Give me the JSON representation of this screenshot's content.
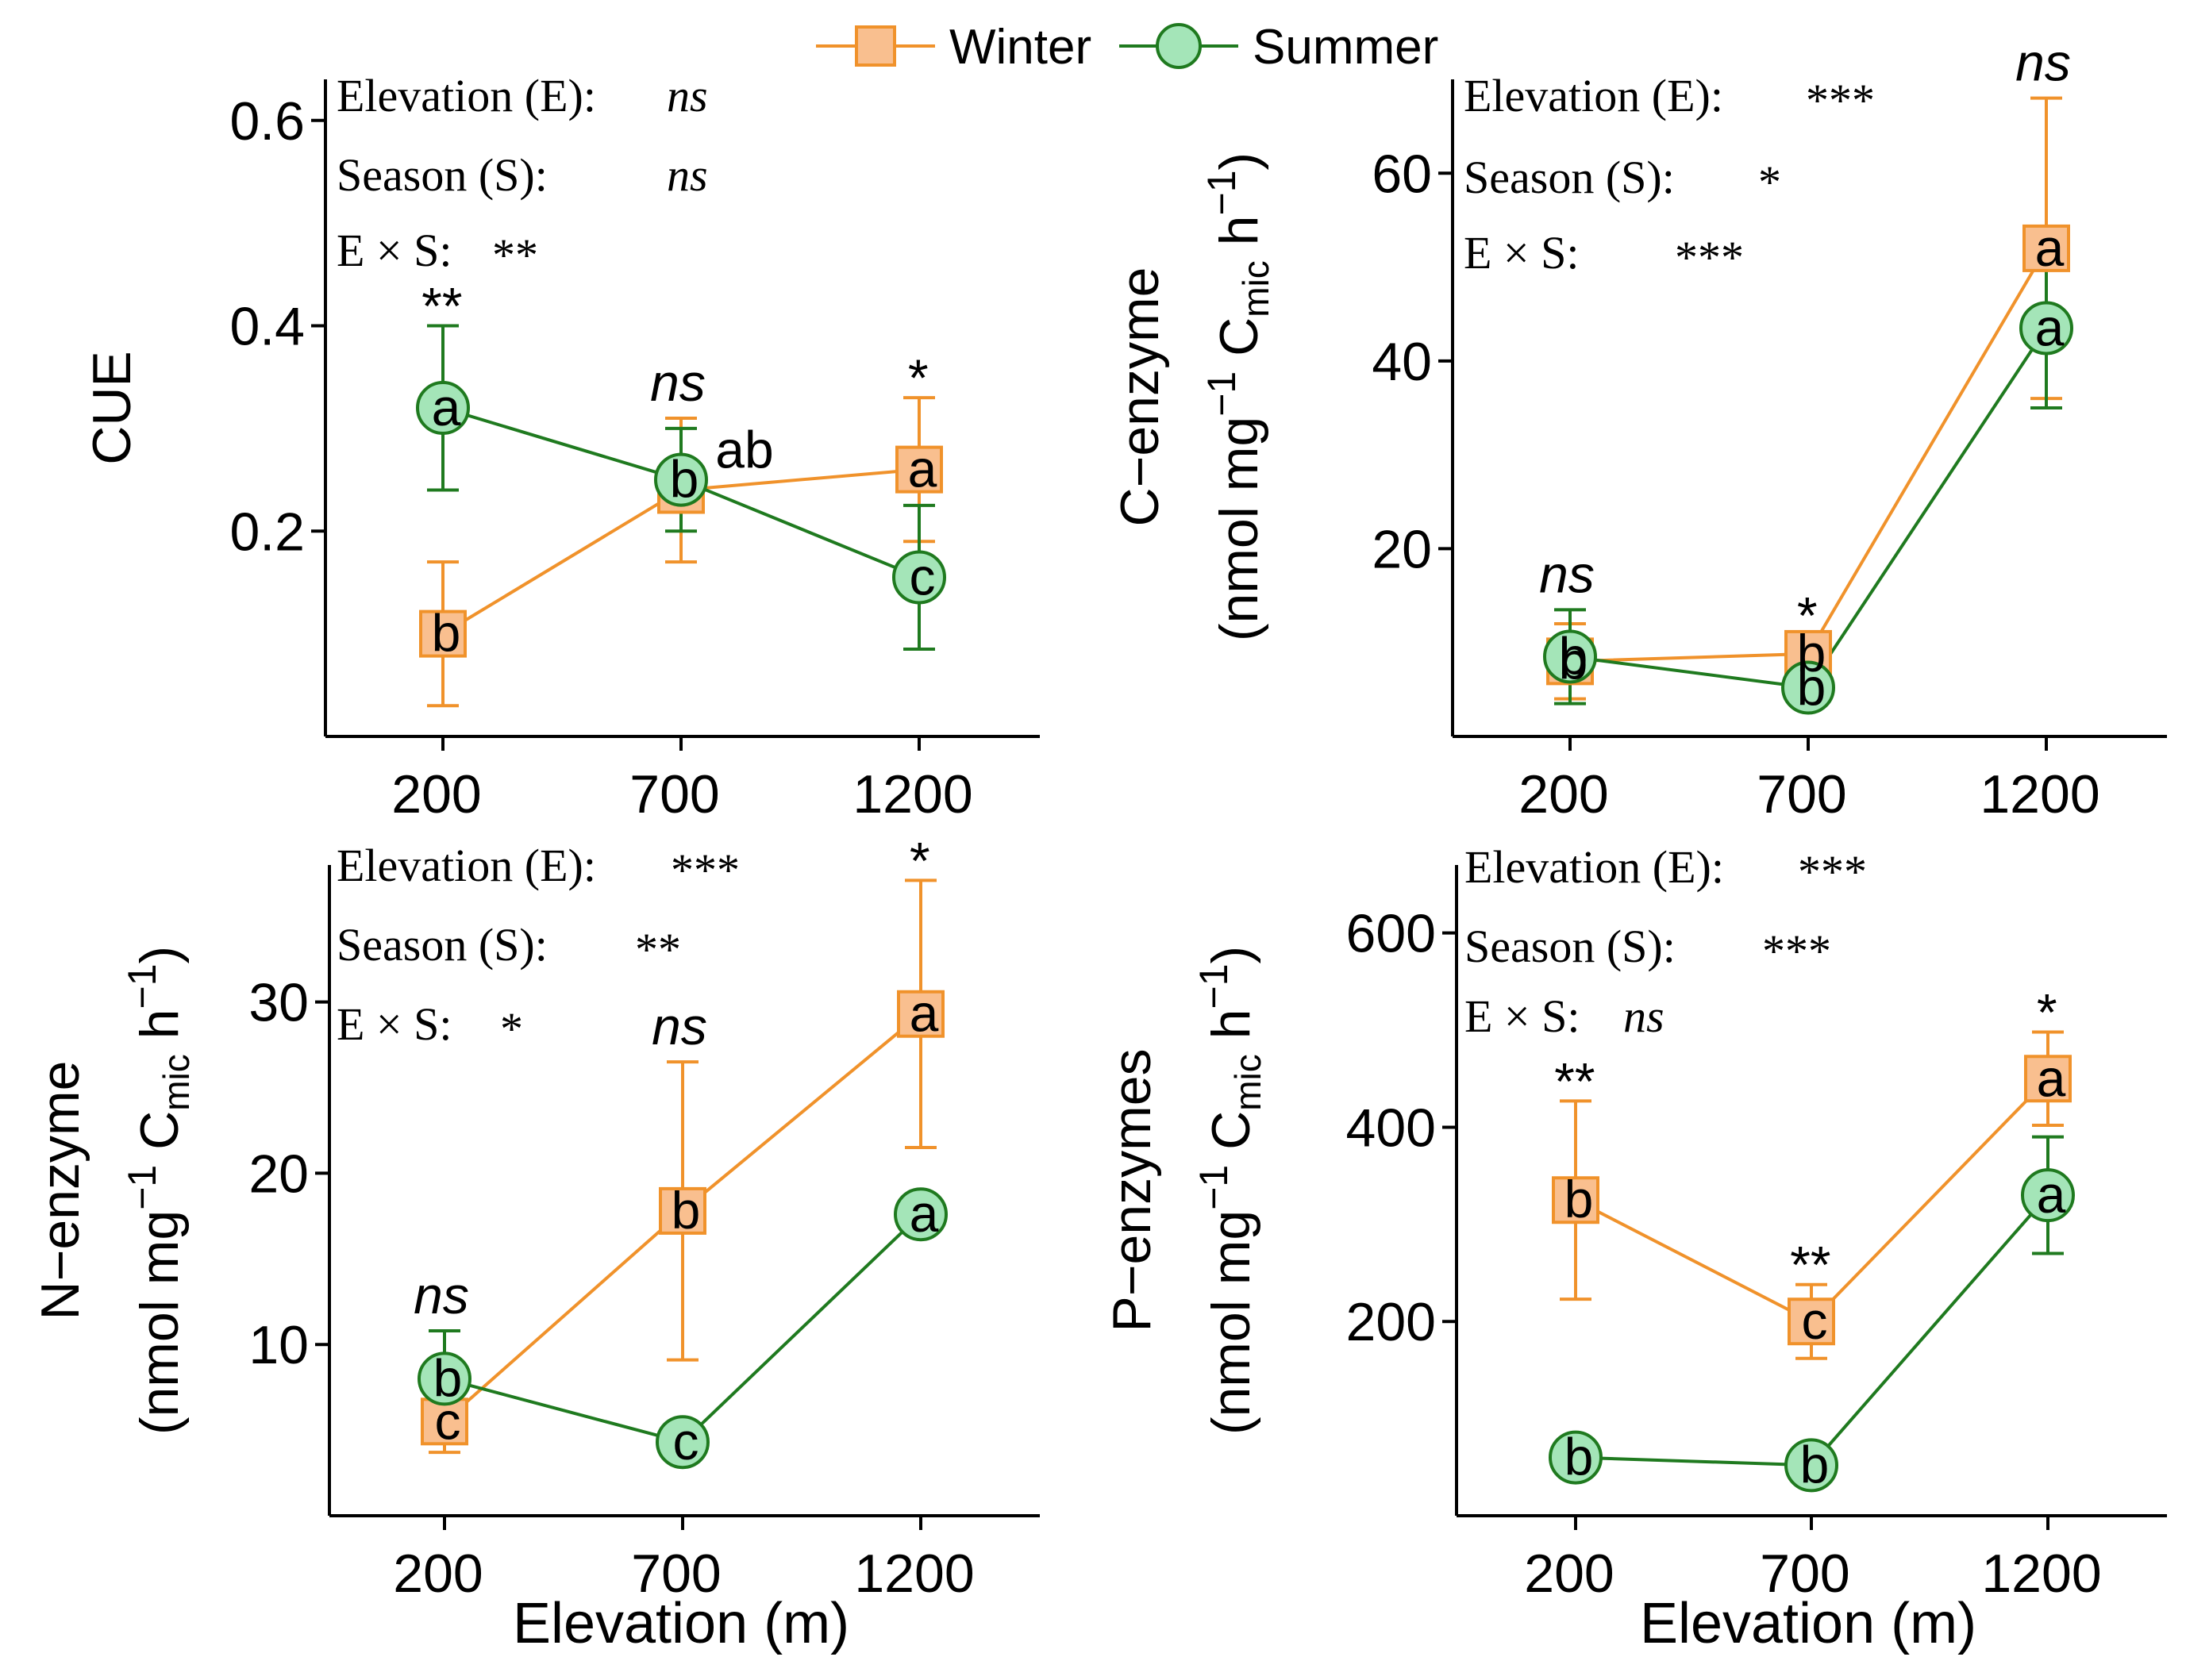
{
  "legend": {
    "winter_label": "Winter",
    "summer_label": "Summer",
    "winter_color": "#f0922b",
    "winter_fill": "#f9bf8f",
    "summer_color": "#1f7a1f",
    "summer_fill": "#a4e5b8"
  },
  "x_axis_title": "Elevation (m)",
  "chart_data": [
    {
      "id": "cue",
      "type": "line",
      "title": "",
      "ylabel_lines": [
        "CUE"
      ],
      "xlabel": "",
      "categories": [
        "200",
        "700",
        "1200"
      ],
      "ylim": [
        0,
        0.64
      ],
      "yticks": [
        0.2,
        0.4,
        0.6
      ],
      "ytick_labels": [
        "0.2",
        "0.4",
        "0.6"
      ],
      "series": [
        {
          "name": "Winter",
          "values": [
            0.1,
            0.24,
            0.26
          ],
          "err": [
            0.07,
            0.07,
            0.07
          ],
          "letters": [
            "b",
            "",
            "a"
          ]
        },
        {
          "name": "Summer",
          "values": [
            0.32,
            0.25,
            0.155
          ],
          "err": [
            0.08,
            0.05,
            0.07
          ],
          "letters": [
            "a",
            "b",
            "c"
          ]
        }
      ],
      "extra_labels": [
        {
          "text": "ab",
          "series": "Winter",
          "cat": 1
        }
      ],
      "significance": [
        "**",
        "ns",
        "*"
      ],
      "stats": [
        "Elevation (E): ",
        "ns",
        "Season (S): ",
        "ns",
        "E × S: ",
        "**"
      ]
    },
    {
      "id": "c-enzyme",
      "type": "line",
      "title": "",
      "ylabel_lines": [
        "C−enzyme",
        "(nmol mg−1 Cmic h−1)"
      ],
      "xlabel": "",
      "categories": [
        "200",
        "700",
        "1200"
      ],
      "ylim": [
        0,
        70
      ],
      "yticks": [
        20,
        40,
        60
      ],
      "ytick_labels": [
        "20",
        "40",
        "60"
      ],
      "series": [
        {
          "name": "Winter",
          "values": [
            8.0,
            8.8,
            52
          ],
          "err": [
            4.0,
            2.0,
            16
          ],
          "letters": [
            "b",
            "b",
            "a"
          ]
        },
        {
          "name": "Summer",
          "values": [
            8.5,
            5.2,
            43.5
          ],
          "err": [
            5.0,
            2.0,
            8.5
          ],
          "letters": [
            "b",
            "b",
            "a"
          ]
        }
      ],
      "extra_labels": [],
      "significance": [
        "ns",
        "*",
        "ns"
      ],
      "stats": [
        "Elevation (E): ",
        "***",
        "Season (S): ",
        "*",
        "E × S:",
        "***"
      ]
    },
    {
      "id": "n-enzyme",
      "type": "line",
      "title": "",
      "ylabel_lines": [
        "N−enzyme",
        "(nmol mg−1 Cmic h−1)"
      ],
      "xlabel": "Elevation (m)",
      "categories": [
        "200",
        "700",
        "1200"
      ],
      "ylim": [
        0,
        38
      ],
      "yticks": [
        10,
        20,
        30
      ],
      "ytick_labels": [
        "10",
        "20",
        "30"
      ],
      "series": [
        {
          "name": "Winter",
          "values": [
            5.5,
            17.8,
            29.3
          ],
          "err": [
            1.8,
            8.7,
            7.8
          ],
          "letters": [
            "c",
            "b",
            "a"
          ]
        },
        {
          "name": "Summer",
          "values": [
            8.0,
            4.3,
            17.6
          ],
          "err": [
            2.8,
            0.5,
            0.8
          ],
          "letters": [
            "b",
            "c",
            "a"
          ]
        }
      ],
      "extra_labels": [],
      "significance": [
        "ns",
        "ns",
        "*"
      ],
      "stats": [
        "Elevation (E): ",
        "***",
        "Season (S): ",
        "**",
        "E × S: ",
        "*"
      ]
    },
    {
      "id": "p-enzymes",
      "type": "line",
      "title": "",
      "ylabel_lines": [
        "P−enzymes",
        "(nmol mg−1 Cmic h−1)"
      ],
      "xlabel": "Elevation (m)",
      "categories": [
        "200",
        "700",
        "1200"
      ],
      "ylim": [
        0,
        670
      ],
      "yticks": [
        200,
        400,
        600
      ],
      "ytick_labels": [
        "200",
        "400",
        "600"
      ],
      "series": [
        {
          "name": "Winter",
          "values": [
            325,
            200,
            450
          ],
          "err": [
            102,
            38,
            48
          ],
          "letters": [
            "b",
            "c",
            "a"
          ]
        },
        {
          "name": "Summer",
          "values": [
            60,
            52,
            330
          ],
          "err": [
            10,
            8,
            60
          ],
          "letters": [
            "b",
            "b",
            "a"
          ]
        }
      ],
      "extra_labels": [],
      "significance": [
        "**",
        "**",
        "*"
      ],
      "stats": [
        "Elevation (E): ",
        "***",
        "Season (S): ",
        "***",
        "E × S: ",
        "ns"
      ]
    }
  ]
}
